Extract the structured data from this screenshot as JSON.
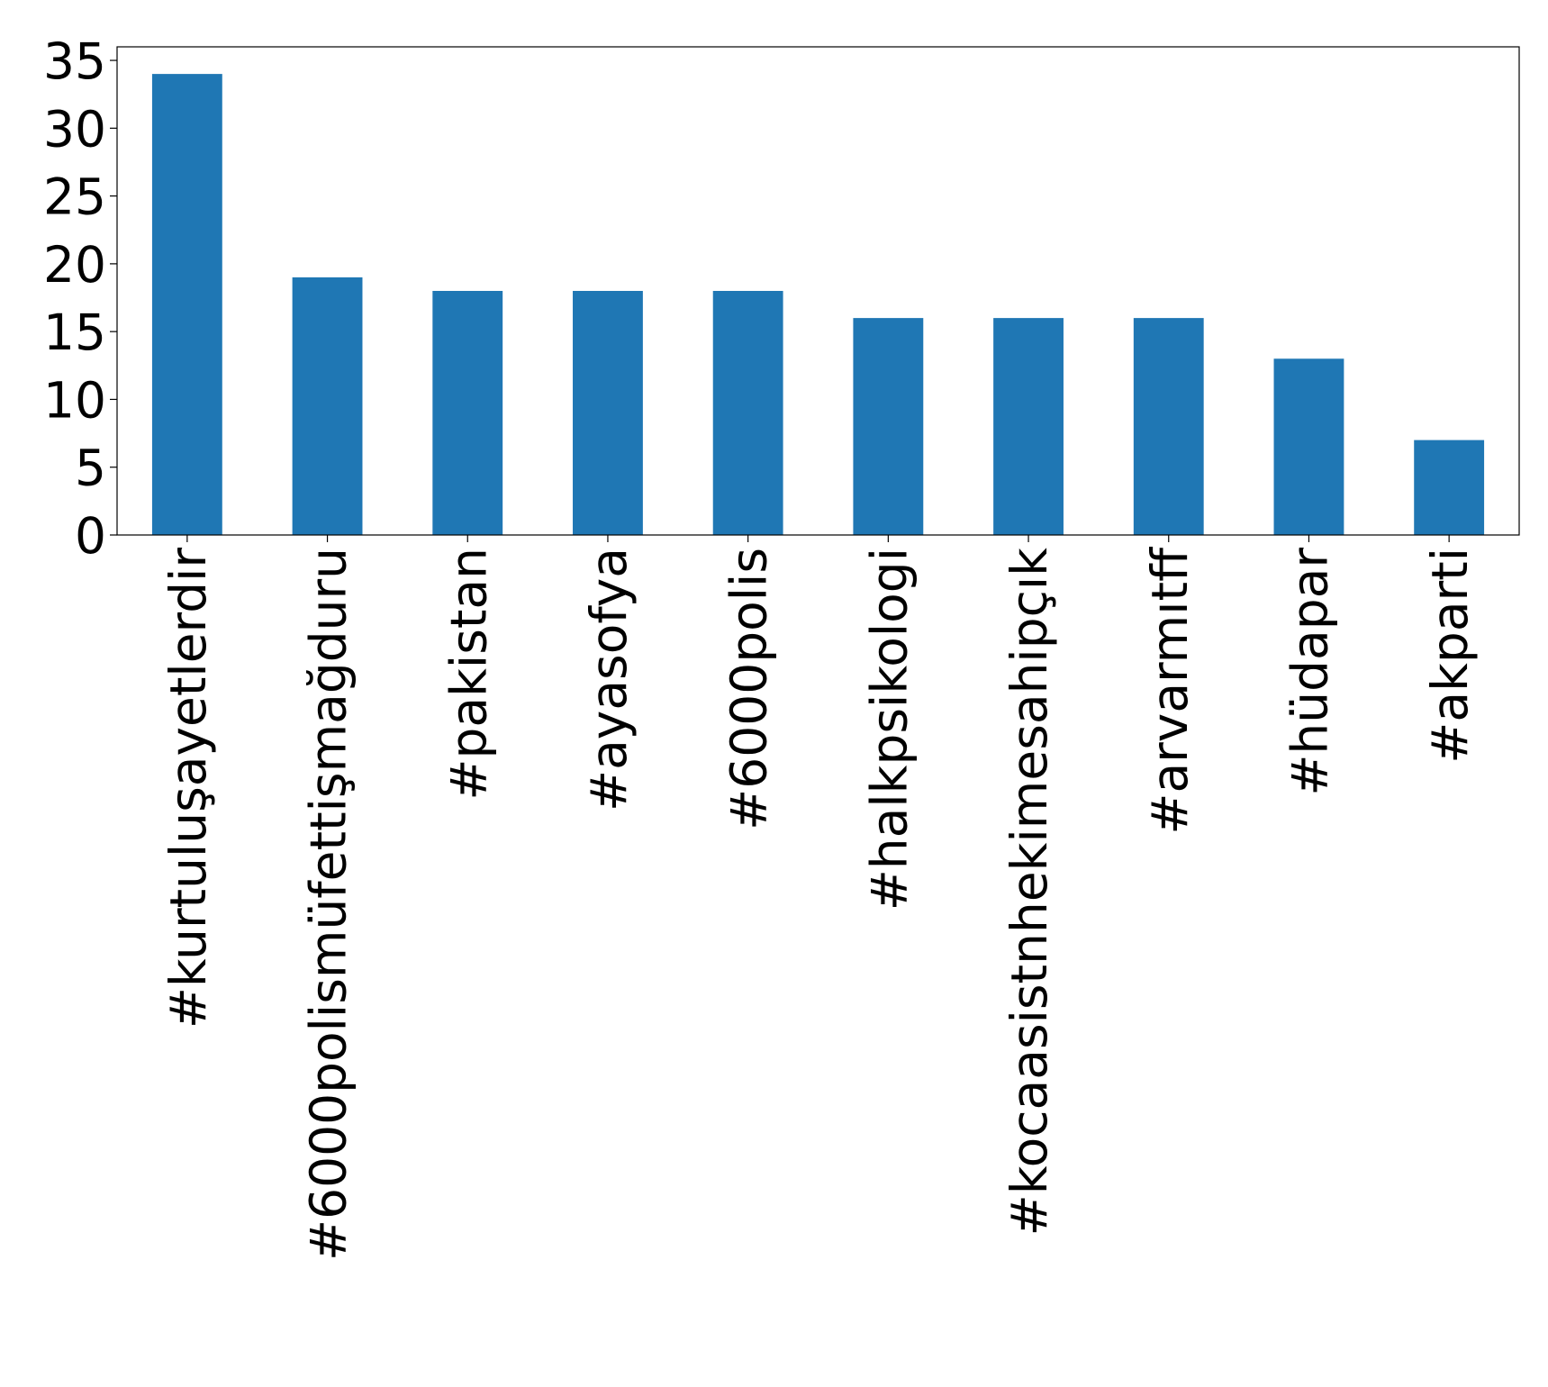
{
  "chart_data": {
    "type": "bar",
    "categories": [
      "#kurtuluşayetlerdir",
      "#6000polismüfettişmağduru",
      "#pakistan",
      "#ayasofya",
      "#6000polis",
      "#halkpsikologi",
      "#kocaasistnhekimesahipçık",
      "#arvarmıtff",
      "#hüdapar",
      "#akparti"
    ],
    "values": [
      34,
      19,
      18,
      18,
      18,
      16,
      16,
      16,
      13,
      7
    ],
    "color": "#1f77b4",
    "ylim": [
      0,
      36
    ],
    "yticks": [
      0,
      5,
      10,
      15,
      20,
      25,
      30,
      35
    ],
    "grid": false
  }
}
